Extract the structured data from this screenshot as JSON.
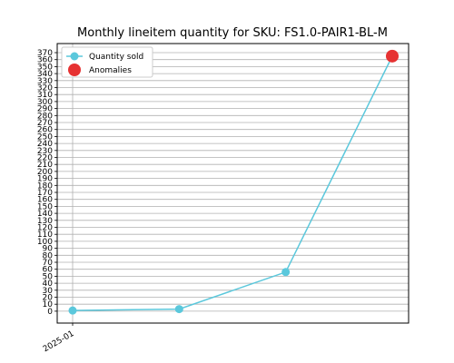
{
  "chart_data": {
    "type": "line",
    "title": "Monthly lineitem quantity for SKU: FS1.0-PAIR1-BL-M",
    "xlabel": "",
    "ylabel": "",
    "x_tick_labels": [
      "2025-01"
    ],
    "ylim": [
      -17,
      383
    ],
    "y_ticks": [
      0,
      10,
      20,
      30,
      40,
      50,
      60,
      70,
      80,
      90,
      100,
      110,
      120,
      130,
      140,
      150,
      160,
      170,
      180,
      190,
      200,
      210,
      220,
      230,
      240,
      250,
      260,
      270,
      280,
      290,
      300,
      310,
      320,
      330,
      340,
      350,
      360,
      370
    ],
    "grid": "horizontal and vertical",
    "legend_position": "top-left",
    "series": [
      {
        "name": "Quantity sold",
        "color": "#5bc8dc",
        "values": [
          1,
          3,
          56,
          365
        ]
      }
    ],
    "anomalies": {
      "name": "Anomalies",
      "color": "#e63232",
      "points": [
        {
          "index": 3,
          "value": 365
        }
      ]
    }
  }
}
